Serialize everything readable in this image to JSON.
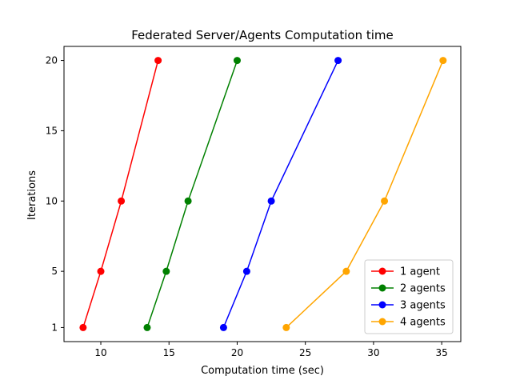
{
  "chart_data": {
    "type": "line",
    "title": "Federated Server/Agents Computation time",
    "xlabel": "Computation time (sec)",
    "ylabel": "Iterations",
    "xlim": [
      7.3,
      36.4
    ],
    "ylim": [
      -0.0,
      21.0
    ],
    "xticks": [
      10,
      15,
      20,
      25,
      30,
      35
    ],
    "yticks": [
      1,
      5,
      10,
      15,
      20
    ],
    "grid": false,
    "legend_position": "lower-right",
    "series": [
      {
        "name": "1 agent",
        "color": "#ff0000",
        "marker": "circle",
        "points": [
          [
            8.7,
            1
          ],
          [
            10.0,
            5
          ],
          [
            11.5,
            10
          ],
          [
            14.2,
            20
          ]
        ]
      },
      {
        "name": "2 agents",
        "color": "#008000",
        "marker": "circle",
        "points": [
          [
            13.4,
            1
          ],
          [
            14.8,
            5
          ],
          [
            16.4,
            10
          ],
          [
            20.0,
            20
          ]
        ]
      },
      {
        "name": "3 agents",
        "color": "#0000ff",
        "marker": "circle",
        "points": [
          [
            19.0,
            1
          ],
          [
            20.7,
            5
          ],
          [
            22.5,
            10
          ],
          [
            27.4,
            20
          ]
        ]
      },
      {
        "name": "4 agents",
        "color": "#ffa500",
        "marker": "circle",
        "points": [
          [
            23.6,
            1
          ],
          [
            28.0,
            5
          ],
          [
            30.8,
            10
          ],
          [
            35.1,
            20
          ]
        ]
      }
    ]
  }
}
